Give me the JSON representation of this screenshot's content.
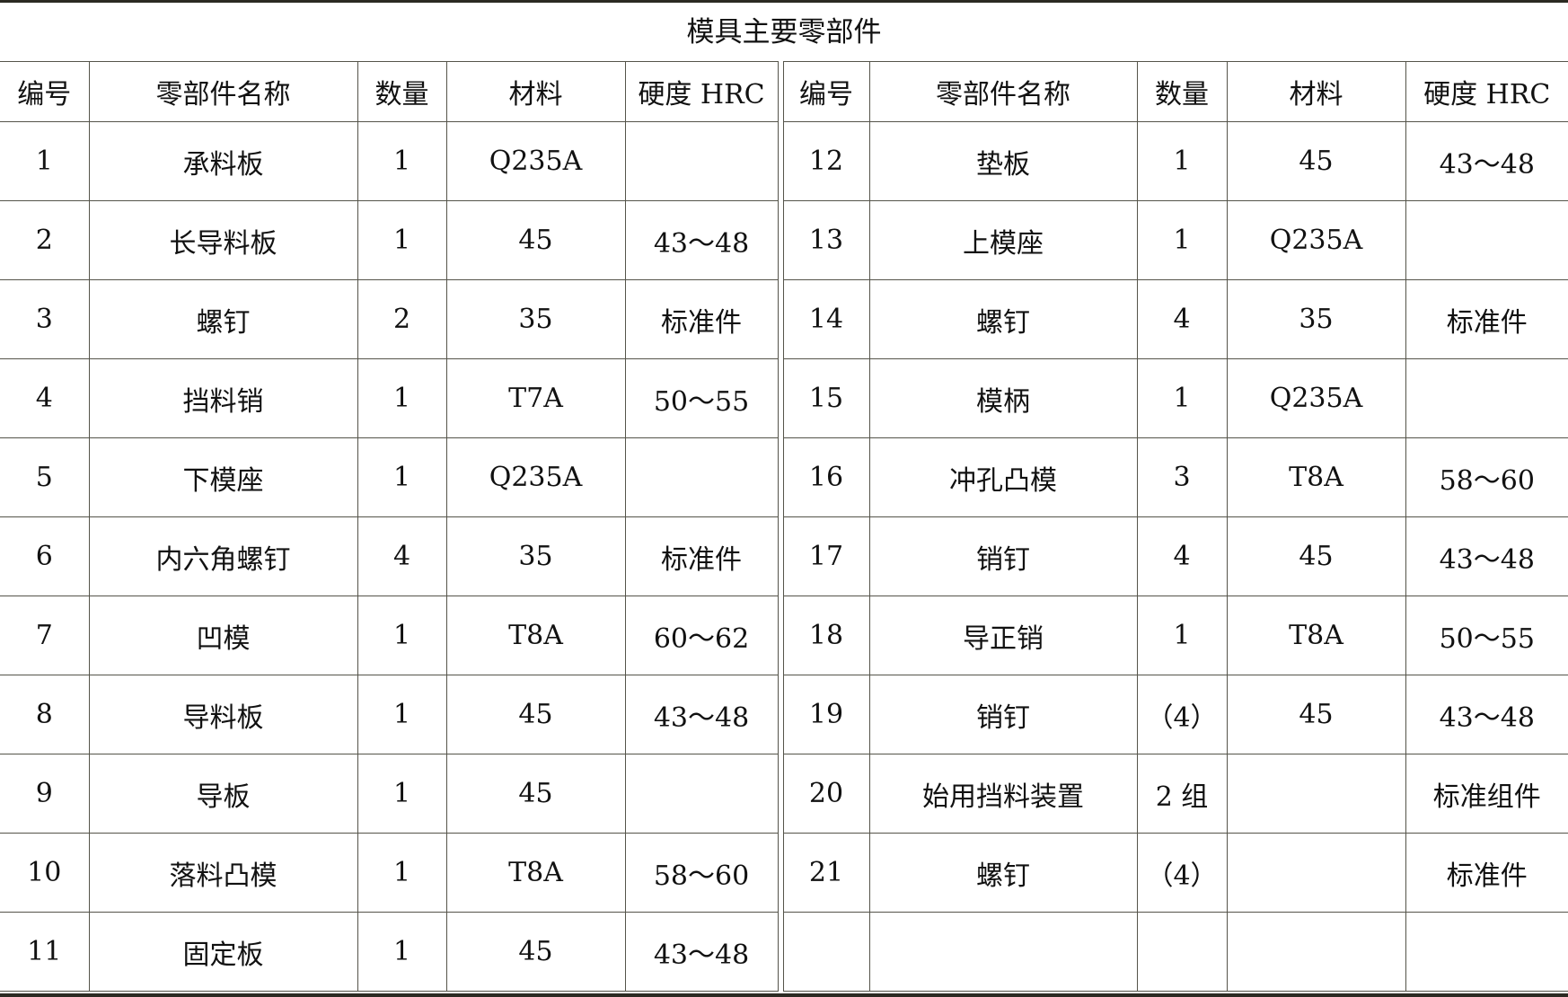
{
  "title": "模具主要零部件",
  "headers": [
    "编号",
    "零部件名称",
    "数量",
    "材料",
    "硬度 HRC"
  ],
  "left_rows": [
    [
      "1",
      "承料板",
      "1",
      "Q235A",
      ""
    ],
    [
      "2",
      "长导料板",
      "1",
      "45",
      "43～48"
    ],
    [
      "3",
      "螺钉",
      "2",
      "35",
      "标准件"
    ],
    [
      "4",
      "挡料销",
      "1",
      "T7A",
      "50～55"
    ],
    [
      "5",
      "下模座",
      "1",
      "Q235A",
      ""
    ],
    [
      "6",
      "内六角螺钉",
      "4",
      "35",
      "标准件"
    ],
    [
      "7",
      "凹模",
      "1",
      "T8A",
      "60～62"
    ],
    [
      "8",
      "导料板",
      "1",
      "45",
      "43～48"
    ],
    [
      "9",
      "导板",
      "1",
      "45",
      ""
    ],
    [
      "10",
      "落料凸模",
      "1",
      "T8A",
      "58～60"
    ],
    [
      "11",
      "固定板",
      "1",
      "45",
      "43～48"
    ]
  ],
  "right_rows": [
    [
      "12",
      "垫板",
      "1",
      "45",
      "43～48"
    ],
    [
      "13",
      "上模座",
      "1",
      "Q235A",
      ""
    ],
    [
      "14",
      "螺钉",
      "4",
      "35",
      "标准件"
    ],
    [
      "15",
      "模柄",
      "1",
      "Q235A",
      ""
    ],
    [
      "16",
      "冲孔凸模",
      "3",
      "T8A",
      "58～60"
    ],
    [
      "17",
      "销钉",
      "4",
      "45",
      "43～48"
    ],
    [
      "18",
      "导正销",
      "1",
      "T8A",
      "50～55"
    ],
    [
      "19",
      "销钉",
      "（4）",
      "45",
      "43～48"
    ],
    [
      "20",
      "始用挡料装置",
      "2 组",
      "",
      "标准组件"
    ],
    [
      "21",
      "螺钉",
      "（4）",
      "",
      "标准件"
    ],
    [
      "",
      "",
      "",
      "",
      ""
    ]
  ]
}
